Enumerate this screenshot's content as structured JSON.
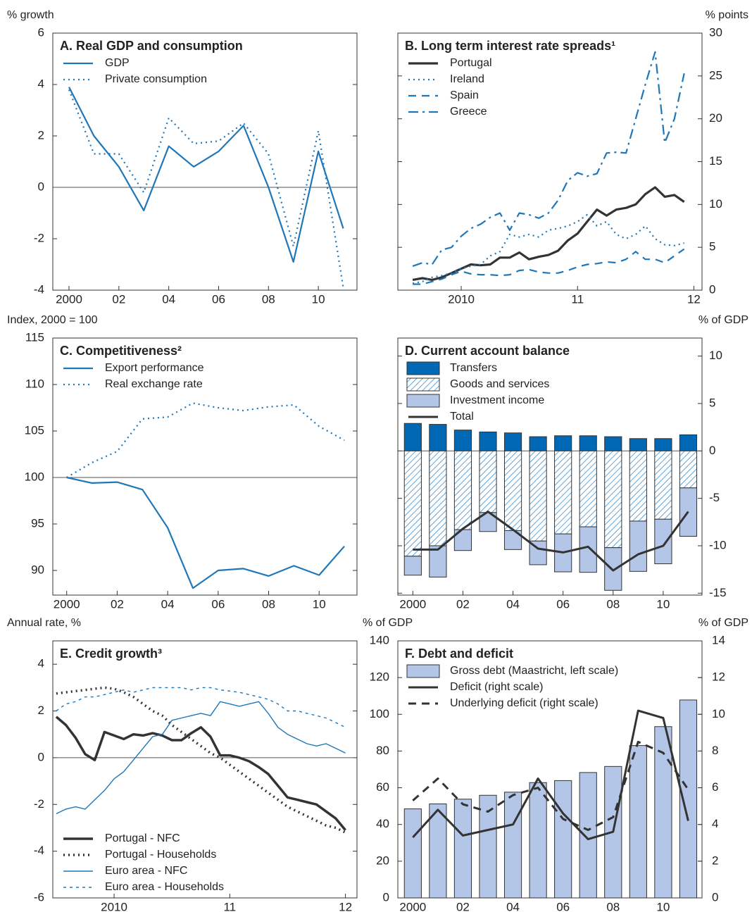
{
  "chart_data": [
    {
      "type": "line",
      "title": "A. Real GDP and consumption",
      "y_label": "% growth",
      "yaxis_side": "left",
      "legend": "upper left",
      "x": [
        2000,
        2001,
        2002,
        2003,
        2004,
        2005,
        2006,
        2007,
        2008,
        2009,
        2010,
        2011
      ],
      "xlim": [
        1999.35,
        2011.55
      ],
      "xticks": [
        2000,
        {
          "value": 2002,
          "label": "02"
        },
        {
          "value": 2004,
          "label": "04"
        },
        {
          "value": 2006,
          "label": "06"
        },
        {
          "value": 2008,
          "label": "08"
        },
        {
          "value": 2010,
          "label": "10"
        }
      ],
      "ylim": [
        -4,
        6
      ],
      "yticks": [
        -4,
        -2,
        0,
        2,
        4,
        6
      ],
      "refline": 0,
      "series": [
        {
          "name": "GDP",
          "color": "#1f77b8",
          "dash": "solid",
          "width": 2.2,
          "values": [
            3.9,
            2.0,
            0.8,
            -0.9,
            1.6,
            0.8,
            1.4,
            2.4,
            0.0,
            -2.9,
            1.4,
            -1.6
          ]
        },
        {
          "name": "Private consumption",
          "color": "#1f77b8",
          "dash": "dotted",
          "width": 2.2,
          "values": [
            3.8,
            1.3,
            1.3,
            -0.2,
            2.7,
            1.7,
            1.8,
            2.5,
            1.3,
            -2.3,
            2.2,
            -3.9
          ]
        }
      ]
    },
    {
      "type": "line",
      "title": "B. Long term interest rate spreads¹",
      "y_label": "% points",
      "yaxis_side": "right",
      "legend": "upper left",
      "x": [
        2009.583,
        2009.667,
        2009.75,
        2009.833,
        2009.917,
        2010,
        2010.083,
        2010.167,
        2010.25,
        2010.333,
        2010.417,
        2010.5,
        2010.583,
        2010.667,
        2010.75,
        2010.833,
        2010.917,
        2011,
        2011.083,
        2011.167,
        2011.25,
        2011.333,
        2011.417,
        2011.5,
        2011.583,
        2011.667,
        2011.75,
        2011.833,
        2011.917
      ],
      "xlim": [
        2009.455,
        2012.07
      ],
      "xticks": [
        2010,
        {
          "value": 2011,
          "label": "11"
        },
        {
          "value": 2012,
          "label": "12"
        }
      ],
      "ylim": [
        0,
        30
      ],
      "yticks": [
        0,
        5,
        10,
        15,
        20,
        25,
        30
      ],
      "series": [
        {
          "name": "Portugal",
          "color": "#333333",
          "dash": "solid",
          "width": 3.2,
          "values": [
            1.2,
            1.4,
            1.2,
            1.5,
            2.0,
            2.5,
            3.0,
            2.9,
            3.0,
            3.8,
            3.8,
            4.4,
            3.6,
            3.9,
            4.1,
            4.6,
            5.8,
            6.6,
            8.0,
            9.4,
            8.7,
            9.4,
            9.6,
            10.0,
            11.2,
            12.0,
            10.9,
            11.1,
            10.3
          ]
        },
        {
          "name": "Ireland",
          "color": "#1f77b8",
          "dash": "dotted",
          "width": 2.2,
          "values": [
            0.8,
            1.0,
            1.5,
            1.7,
            2.0,
            2.5,
            2.8,
            3.0,
            4.0,
            4.5,
            6.5,
            6.2,
            6.5,
            6.2,
            7.0,
            7.2,
            7.5,
            8.0,
            8.8,
            7.5,
            8.0,
            6.5,
            6.0,
            6.5,
            7.5,
            6.0,
            5.3,
            5.2,
            5.5
          ]
        },
        {
          "name": "Spain",
          "color": "#1f77b8",
          "dash": "dashed",
          "width": 2.2,
          "values": [
            0.7,
            0.7,
            1.0,
            1.3,
            1.8,
            2.2,
            1.9,
            1.8,
            1.8,
            1.7,
            1.8,
            2.3,
            2.4,
            2.1,
            2.0,
            2.0,
            2.3,
            2.7,
            3.0,
            3.1,
            3.3,
            3.2,
            3.6,
            4.5,
            3.6,
            3.6,
            3.2,
            4.0,
            4.8
          ]
        },
        {
          "name": "Greece",
          "color": "#1f77b8",
          "dash": "dashdot",
          "width": 2.2,
          "values": [
            2.8,
            3.2,
            3.0,
            4.7,
            5.0,
            6.3,
            7.2,
            7.7,
            8.5,
            9.0,
            7.0,
            9.0,
            8.8,
            8.4,
            9.0,
            10.5,
            12.8,
            13.7,
            13.3,
            13.6,
            16.0,
            16.1,
            16.0,
            20.0,
            24.0,
            27.8,
            17.2,
            20.0,
            25.3
          ]
        }
      ]
    },
    {
      "type": "line",
      "title": "C. Competitiveness²",
      "y_label": "Index, 2000 = 100",
      "yaxis_side": "left",
      "legend": "upper left",
      "x": [
        2000,
        2001,
        2002,
        2003,
        2004,
        2005,
        2006,
        2007,
        2008,
        2009,
        2010,
        2011
      ],
      "xlim": [
        1999.45,
        2011.5
      ],
      "xticks": [
        2000,
        {
          "value": 2002,
          "label": "02"
        },
        {
          "value": 2004,
          "label": "04"
        },
        {
          "value": 2006,
          "label": "06"
        },
        {
          "value": 2008,
          "label": "08"
        },
        {
          "value": 2010,
          "label": "10"
        }
      ],
      "ylim": [
        87.35,
        115
      ],
      "yticks": [
        90,
        95,
        100,
        105,
        110,
        115
      ],
      "refline": 100,
      "series": [
        {
          "name": "Export performance",
          "color": "#1f77b8",
          "dash": "solid",
          "width": 2.2,
          "values": [
            100,
            99.4,
            99.5,
            98.7,
            94.6,
            88.1,
            90.0,
            90.2,
            89.4,
            90.5,
            89.5,
            92.6
          ]
        },
        {
          "name": "Real exchange rate",
          "color": "#1f77b8",
          "dash": "dotted",
          "width": 2.2,
          "values": [
            100,
            101.6,
            102.8,
            106.3,
            106.5,
            108.0,
            107.5,
            107.2,
            107.6,
            107.8,
            105.5,
            104.0
          ]
        }
      ]
    },
    {
      "type": "bar",
      "title": "D. Current account balance",
      "y_label": "% of GDP",
      "yaxis_side": "right",
      "legend": "upper left",
      "x": [
        2000,
        2001,
        2002,
        2003,
        2004,
        2005,
        2006,
        2007,
        2008,
        2009,
        2010,
        2011
      ],
      "xlim": [
        1999.4,
        2011.55
      ],
      "xticks": [
        2000,
        {
          "value": 2002,
          "label": "02"
        },
        {
          "value": 2004,
          "label": "04"
        },
        {
          "value": 2006,
          "label": "06"
        },
        {
          "value": 2008,
          "label": "08"
        },
        {
          "value": 2010,
          "label": "10"
        }
      ],
      "ylim": [
        -15.2,
        11.9
      ],
      "yticks": [
        -15,
        -10,
        -5,
        0,
        5,
        10
      ],
      "refline": 0,
      "series": [
        {
          "name": "Transfers",
          "kind": "bar",
          "color": "#0068b4",
          "values": [
            2.9,
            2.8,
            2.2,
            2.0,
            1.9,
            1.5,
            1.6,
            1.6,
            1.5,
            1.3,
            1.3,
            1.7
          ]
        },
        {
          "name": "Goods and services",
          "kind": "bar",
          "color": "#3f8fcb",
          "hatch": true,
          "values": [
            -11.1,
            -10.0,
            -8.3,
            -6.5,
            -8.4,
            -9.5,
            -8.75,
            -8.0,
            -10.2,
            -7.4,
            -7.2,
            -3.9
          ]
        },
        {
          "name": "Investment income",
          "kind": "bar",
          "color": "#b3c6e7",
          "values": [
            -2.0,
            -3.3,
            -2.2,
            -2.0,
            -2.0,
            -2.5,
            -4.0,
            -4.8,
            -4.5,
            -5.3,
            -4.7,
            -5.1
          ]
        },
        {
          "name": "Total",
          "kind": "line",
          "color": "#333333",
          "dash": "solid",
          "width": 3,
          "values": [
            -10.4,
            -10.4,
            -8.2,
            -6.4,
            -8.3,
            -10.3,
            -10.7,
            -10.1,
            -12.6,
            -10.9,
            -10.0,
            -6.4
          ]
        }
      ]
    },
    {
      "type": "line",
      "title": "E. Credit growth³",
      "y_label": "Annual rate, %",
      "yaxis_side": "left",
      "legend": "lower left",
      "x": [
        2009.5,
        2009.583,
        2009.667,
        2009.75,
        2009.833,
        2009.917,
        2010,
        2010.083,
        2010.167,
        2010.25,
        2010.333,
        2010.417,
        2010.5,
        2010.583,
        2010.667,
        2010.75,
        2010.833,
        2010.917,
        2011,
        2011.083,
        2011.167,
        2011.25,
        2011.333,
        2011.417,
        2011.5,
        2011.583,
        2011.667,
        2011.75,
        2011.833,
        2011.917,
        2012
      ],
      "xlim": [
        2009.47,
        2012.1
      ],
      "xticks": [
        2010,
        {
          "value": 2011,
          "label": "11"
        },
        {
          "value": 2012,
          "label": "12"
        }
      ],
      "ylim": [
        -6,
        5
      ],
      "yticks": [
        -6,
        -4,
        -2,
        0,
        2,
        4
      ],
      "refline": 0,
      "series": [
        {
          "name": "Portugal - NFC",
          "color": "#333333",
          "dash": "solid",
          "width": 3.5,
          "values": [
            1.75,
            1.4,
            0.85,
            0.15,
            -0.1,
            1.1,
            0.95,
            0.8,
            1.0,
            0.95,
            1.05,
            0.95,
            0.75,
            0.75,
            1.05,
            1.3,
            0.9,
            0.1,
            0.1,
            0.0,
            -0.15,
            -0.4,
            -0.7,
            -1.2,
            -1.7,
            -1.8,
            -1.9,
            -2.0,
            -2.3,
            -2.6,
            -3.1
          ]
        },
        {
          "name": "Portugal - Households",
          "color": "#333333",
          "dash": "dotted",
          "width": 3.5,
          "values": [
            2.75,
            2.8,
            2.85,
            2.9,
            2.95,
            3.0,
            2.95,
            2.8,
            2.6,
            2.3,
            2.0,
            1.8,
            1.4,
            1.1,
            0.8,
            0.5,
            0.2,
            0.0,
            -0.3,
            -0.6,
            -0.9,
            -1.2,
            -1.5,
            -1.8,
            -2.1,
            -2.3,
            -2.5,
            -2.7,
            -2.9,
            -3.0,
            -3.2
          ]
        },
        {
          "name": "Euro area - NFC",
          "color": "#1f77b8",
          "dash": "solid",
          "width": 1.4,
          "values": [
            -2.4,
            -2.2,
            -2.1,
            -2.2,
            -1.8,
            -1.4,
            -0.9,
            -0.6,
            -0.1,
            0.4,
            0.9,
            1.0,
            1.6,
            1.7,
            1.8,
            1.9,
            1.8,
            2.4,
            2.3,
            2.2,
            2.3,
            2.4,
            1.9,
            1.3,
            1.0,
            0.8,
            0.6,
            0.5,
            0.6,
            0.4,
            0.2
          ]
        },
        {
          "name": "Euro area - Households",
          "color": "#1f77b8",
          "dash": "thindot",
          "width": 1.4,
          "values": [
            2.0,
            2.3,
            2.4,
            2.6,
            2.6,
            2.7,
            2.8,
            2.9,
            2.8,
            2.9,
            3.0,
            3.0,
            3.0,
            3.0,
            2.9,
            3.0,
            3.0,
            2.9,
            2.85,
            2.8,
            2.7,
            2.6,
            2.5,
            2.3,
            2.0,
            2.0,
            1.9,
            1.8,
            1.7,
            1.5,
            1.3
          ]
        }
      ]
    },
    {
      "type": "bar",
      "title": "F. Debt and deficit",
      "y_label": "% of GDP",
      "y2_label": "% of GDP",
      "yaxis_side": "left",
      "legend": "upper left",
      "x": [
        2000,
        2001,
        2002,
        2003,
        2004,
        2005,
        2006,
        2007,
        2008,
        2009,
        2010,
        2011
      ],
      "xlim": [
        1999.4,
        2011.55
      ],
      "xticks": [
        2000,
        {
          "value": 2002,
          "label": "02"
        },
        {
          "value": 2004,
          "label": "04"
        },
        {
          "value": 2006,
          "label": "06"
        },
        {
          "value": 2008,
          "label": "08"
        },
        {
          "value": 2010,
          "label": "10"
        }
      ],
      "ylim": [
        0,
        140
      ],
      "yticks": [
        0,
        20,
        40,
        60,
        80,
        100,
        120,
        140
      ],
      "y2lim": [
        0,
        14
      ],
      "y2ticks": [
        0,
        2,
        4,
        6,
        8,
        10,
        12,
        14
      ],
      "series": [
        {
          "name": "Gross debt (Maastricht, left scale)",
          "kind": "bar",
          "color": "#b3c6e7",
          "values": [
            48.5,
            51.2,
            53.8,
            55.9,
            57.6,
            62.8,
            63.9,
            68.3,
            71.6,
            83.0,
            93.3,
            107.8
          ]
        },
        {
          "name": "Deficit (right scale)",
          "kind": "line",
          "axis": "y2",
          "color": "#333333",
          "dash": "solid",
          "width": 3,
          "values": [
            3.3,
            4.8,
            3.4,
            3.7,
            4.0,
            6.5,
            4.6,
            3.2,
            3.6,
            10.2,
            9.8,
            4.2
          ]
        },
        {
          "name": "Underlying deficit (right scale)",
          "kind": "line",
          "axis": "y2",
          "color": "#333333",
          "dash": "dashed",
          "width": 3,
          "values": [
            5.3,
            6.5,
            5.1,
            4.7,
            5.6,
            6.0,
            4.3,
            3.7,
            4.4,
            8.5,
            7.9,
            5.9
          ]
        }
      ]
    }
  ]
}
